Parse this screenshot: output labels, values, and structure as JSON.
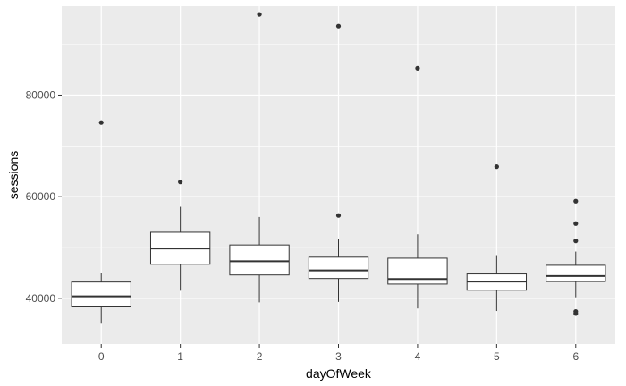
{
  "chart_data": {
    "type": "boxplot",
    "xlabel": "dayOfWeek",
    "ylabel": "sessions",
    "ylim": [
      31000,
      97500
    ],
    "y_ticks": [
      40000,
      60000,
      80000
    ],
    "y_tick_labels": [
      "40000",
      "60000",
      "80000"
    ],
    "grid": true,
    "panel_background": "#ebebeb",
    "grid_color": "#ffffff",
    "box_fill": "#ffffff",
    "box_stroke": "#333333",
    "point_color": "#333333",
    "categories": [
      "0",
      "1",
      "2",
      "3",
      "4",
      "5",
      "6"
    ],
    "boxes": [
      {
        "category": "0",
        "whisker_low": 35000,
        "q1": 38300,
        "median": 40400,
        "q3": 43200,
        "whisker_high": 45000,
        "outliers": [
          74600
        ]
      },
      {
        "category": "1",
        "whisker_low": 41500,
        "q1": 46700,
        "median": 49800,
        "q3": 53000,
        "whisker_high": 58000,
        "outliers": [
          62900
        ]
      },
      {
        "category": "2",
        "whisker_low": 39200,
        "q1": 44600,
        "median": 47300,
        "q3": 50500,
        "whisker_high": 56000,
        "outliers": [
          95900
        ]
      },
      {
        "category": "3",
        "whisker_low": 39300,
        "q1": 43900,
        "median": 45500,
        "q3": 48100,
        "whisker_high": 51600,
        "outliers": [
          56300,
          93600
        ]
      },
      {
        "category": "4",
        "whisker_low": 38000,
        "q1": 42800,
        "median": 43800,
        "q3": 47900,
        "whisker_high": 52600,
        "outliers": [
          85300
        ]
      },
      {
        "category": "5",
        "whisker_low": 37500,
        "q1": 41600,
        "median": 43300,
        "q3": 44800,
        "whisker_high": 48500,
        "outliers": [
          65900
        ]
      },
      {
        "category": "6",
        "whisker_low": 40200,
        "q1": 43300,
        "median": 44400,
        "q3": 46500,
        "whisker_high": 49200,
        "outliers": [
          51300,
          54700,
          59100,
          37000,
          37400
        ]
      }
    ]
  }
}
